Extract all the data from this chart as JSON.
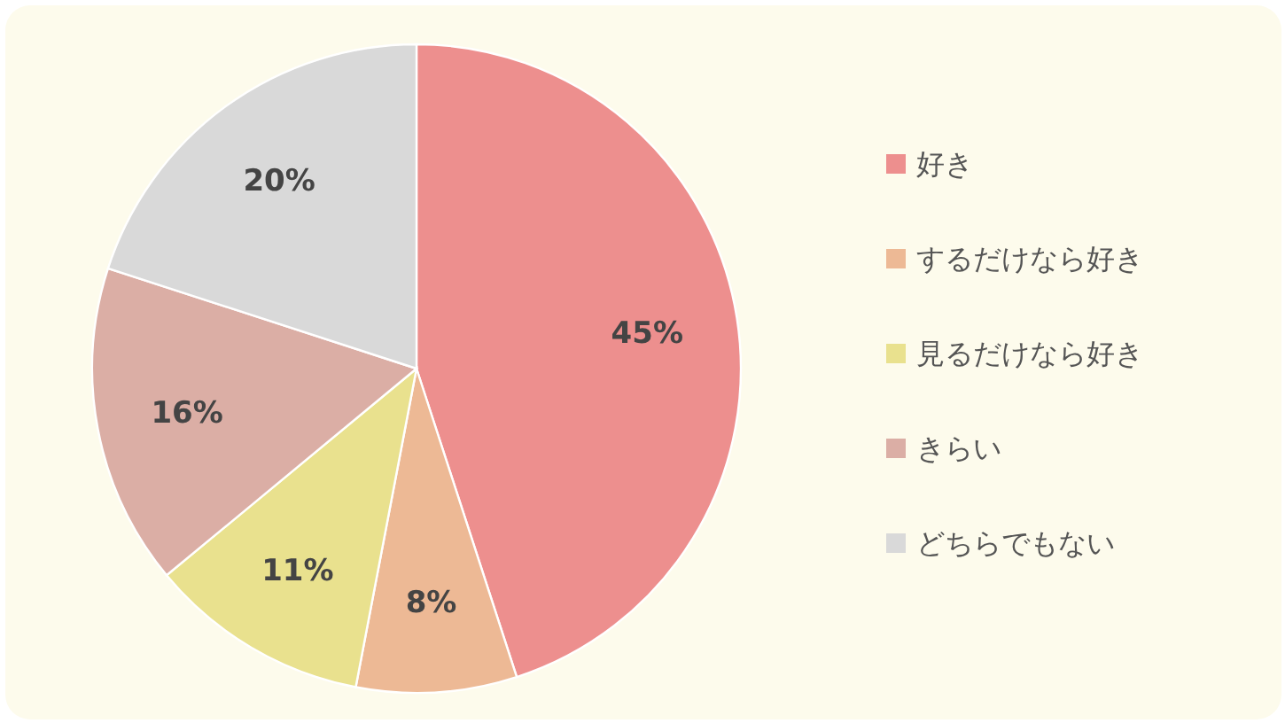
{
  "chart_data": {
    "type": "pie",
    "categories": [
      "好き",
      "するだけなら好き",
      "見るだけなら好き",
      "きらい",
      "どちらでもない"
    ],
    "values": [
      45,
      8,
      11,
      16,
      20
    ],
    "colors": [
      "#ed8f8e",
      "#edb995",
      "#e9e18e",
      "#dbaea5",
      "#d9d9d9"
    ],
    "value_labels": [
      "45%",
      "8%",
      "11%",
      "16%",
      "20%"
    ],
    "legend": "right"
  }
}
